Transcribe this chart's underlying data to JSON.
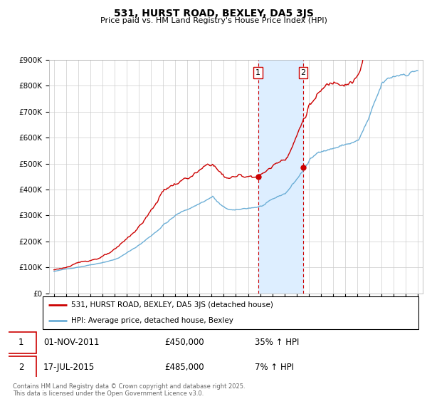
{
  "title1": "531, HURST ROAD, BEXLEY, DA5 3JS",
  "title2": "Price paid vs. HM Land Registry's House Price Index (HPI)",
  "ylabel_ticks": [
    "£0",
    "£100K",
    "£200K",
    "£300K",
    "£400K",
    "£500K",
    "£600K",
    "£700K",
    "£800K",
    "£900K"
  ],
  "ylim": [
    0,
    900000
  ],
  "yticks": [
    0,
    100000,
    200000,
    300000,
    400000,
    500000,
    600000,
    700000,
    800000,
    900000
  ],
  "red_color": "#cc0000",
  "blue_color": "#6baed6",
  "shade_color": "#ddeeff",
  "vline_color": "#cc0000",
  "annotation1": {
    "label": "1",
    "date": "01-NOV-2011",
    "price": "£450,000",
    "hpi": "35% ↑ HPI"
  },
  "annotation2": {
    "label": "2",
    "date": "17-JUL-2015",
    "price": "£485,000",
    "hpi": "7% ↑ HPI"
  },
  "legend1": "531, HURST ROAD, BEXLEY, DA5 3JS (detached house)",
  "legend2": "HPI: Average price, detached house, Bexley",
  "footer": "Contains HM Land Registry data © Crown copyright and database right 2025.\nThis data is licensed under the Open Government Licence v3.0.",
  "transaction1_x": 2011.83,
  "transaction1_y": 450000,
  "transaction2_x": 2015.54,
  "transaction2_y": 485000,
  "shade_x1": 2011.83,
  "shade_x2": 2015.54,
  "xlim_left": 1994.6,
  "xlim_right": 2025.4
}
